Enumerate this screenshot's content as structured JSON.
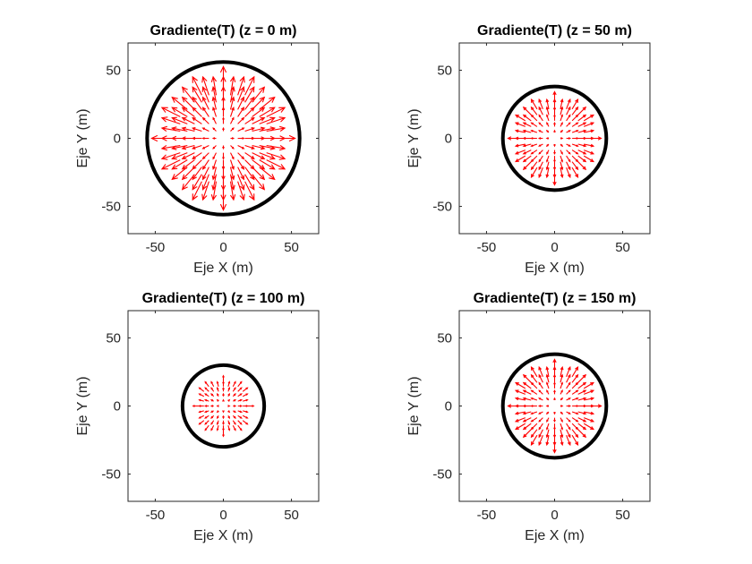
{
  "figure": {
    "background": "#ffffff"
  },
  "chart_data": [
    {
      "type": "quiver",
      "title": "Gradiente(T) (z = 0 m)",
      "xlabel": "Eje X (m)",
      "ylabel": "Eje Y (m)",
      "xlim": [
        -70,
        70
      ],
      "ylim": [
        -70,
        70
      ],
      "xticks": [
        -50,
        0,
        50
      ],
      "yticks": [
        -50,
        0,
        50
      ],
      "xtick_labels": [
        "-50",
        "0",
        "50"
      ],
      "ytick_labels": [
        "-50",
        "0",
        "50"
      ],
      "boundary_radius": 56,
      "field_extent": 45,
      "grid_step": 6.4,
      "arrow_scale": 0.35,
      "boundary_color": "#000000",
      "arrow_color": "#ff0000"
    },
    {
      "type": "quiver",
      "title": "Gradiente(T) (z = 50 m)",
      "xlabel": "Eje X (m)",
      "ylabel": "Eje Y (m)",
      "xlim": [
        -70,
        70
      ],
      "ylim": [
        -70,
        70
      ],
      "xticks": [
        -50,
        0,
        50
      ],
      "yticks": [
        -50,
        0,
        50
      ],
      "xtick_labels": [
        "-50",
        "0",
        "50"
      ],
      "ytick_labels": [
        "-50",
        "0",
        "50"
      ],
      "boundary_radius": 38,
      "field_extent": 30,
      "grid_step": 5,
      "arrow_scale": 0.28,
      "boundary_color": "#000000",
      "arrow_color": "#ff0000"
    },
    {
      "type": "quiver",
      "title": "Gradiente(T) (z = 100 m)",
      "xlabel": "Eje X (m)",
      "ylabel": "Eje Y (m)",
      "xlim": [
        -70,
        70
      ],
      "ylim": [
        -70,
        70
      ],
      "xticks": [
        -50,
        0,
        50
      ],
      "yticks": [
        -50,
        0,
        50
      ],
      "xtick_labels": [
        "-50",
        "0",
        "50"
      ],
      "ytick_labels": [
        "-50",
        "0",
        "50"
      ],
      "boundary_radius": 30,
      "field_extent": 20,
      "grid_step": 4,
      "arrow_scale": 0.22,
      "boundary_color": "#000000",
      "arrow_color": "#ff0000"
    },
    {
      "type": "quiver",
      "title": "Gradiente(T) (z = 150 m)",
      "xlabel": "Eje X (m)",
      "ylabel": "Eje Y (m)",
      "xlim": [
        -70,
        70
      ],
      "ylim": [
        -70,
        70
      ],
      "xticks": [
        -50,
        0,
        50
      ],
      "yticks": [
        -50,
        0,
        50
      ],
      "xtick_labels": [
        "-50",
        "0",
        "50"
      ],
      "ytick_labels": [
        "-50",
        "0",
        "50"
      ],
      "boundary_radius": 38,
      "field_extent": 30,
      "grid_step": 5,
      "arrow_scale": 0.28,
      "boundary_color": "#000000",
      "arrow_color": "#ff0000"
    }
  ]
}
